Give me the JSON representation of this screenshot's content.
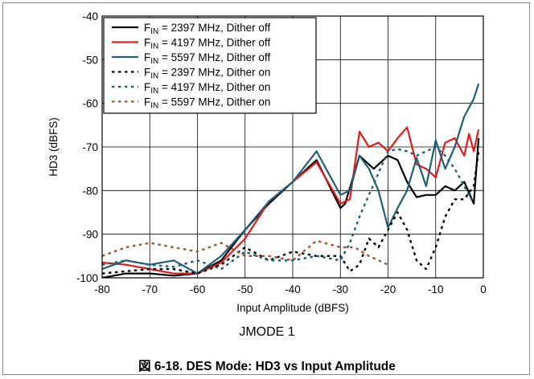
{
  "figure": {
    "subtitle": "JMODE 1",
    "caption": "図 6-18. DES Mode: HD3 vs Input Amplitude"
  },
  "chart_data": {
    "type": "line",
    "title": "",
    "xlabel": "Input Amplitude (dBFS)",
    "ylabel": "HD3 (dBFS)",
    "xlim": [
      -80,
      0
    ],
    "ylim": [
      -100,
      -40
    ],
    "x_ticks": [
      -80,
      -70,
      -60,
      -50,
      -40,
      -30,
      -20,
      -10,
      0
    ],
    "y_ticks": [
      -100,
      -90,
      -80,
      -70,
      -60,
      -50,
      -40
    ],
    "x_tick_labels": [
      "-80",
      "-70",
      "-60",
      "-50",
      "-40",
      "-30",
      "-20",
      "-10",
      "0"
    ],
    "y_tick_labels": [
      "-100",
      "-90",
      "-80",
      "-70",
      "-60",
      "-50",
      "-40"
    ],
    "grid": true,
    "legend_position": "top-left",
    "series": [
      {
        "name": "FIN = 2397 MHz, Dither off",
        "legend_parts": [
          "F",
          "IN",
          " = 2397 MHz, Dither off"
        ],
        "color": "#000000",
        "dash": "solid",
        "x": [
          -80,
          -75,
          -70,
          -65,
          -60,
          -55,
          -50,
          -45,
          -40,
          -35,
          -30,
          -29,
          -26,
          -23,
          -20,
          -18,
          -16,
          -14,
          -12,
          -10,
          -8,
          -6,
          -4,
          -2,
          -1
        ],
        "y": [
          -100,
          -99,
          -99,
          -99.5,
          -99,
          -96,
          -89,
          -83,
          -78,
          -73,
          -84,
          -83,
          -72,
          -75,
          -72,
          -73,
          -78,
          -81.5,
          -81,
          -81,
          -79,
          -80,
          -78,
          -83,
          -68
        ]
      },
      {
        "name": "FIN = 4197 MHz, Dither off",
        "legend_parts": [
          "F",
          "IN",
          " = 4197 MHz, Dither off"
        ],
        "color": "#e31a1c",
        "dash": "solid",
        "x": [
          -80,
          -75,
          -70,
          -65,
          -60,
          -55,
          -50,
          -45,
          -40,
          -35,
          -30,
          -28,
          -26,
          -24,
          -22,
          -20,
          -18,
          -16,
          -14,
          -12,
          -10,
          -8,
          -6,
          -4,
          -3,
          -2,
          -1
        ],
        "y": [
          -96.5,
          -97,
          -98,
          -99,
          -99,
          -96.5,
          -91,
          -82.5,
          -78,
          -73.5,
          -83,
          -82,
          -66.5,
          -70,
          -69,
          -71,
          -68,
          -65.5,
          -74,
          -75,
          -77,
          -69,
          -68,
          -72,
          -67,
          -71,
          -66
        ]
      },
      {
        "name": "FIN = 5597 MHz, Dither off",
        "legend_parts": [
          "F",
          "IN",
          " = 5597 MHz, Dither off"
        ],
        "color": "#1f5f73",
        "dash": "solid",
        "x": [
          -80,
          -75,
          -70,
          -65,
          -60,
          -55,
          -50,
          -45,
          -40,
          -35,
          -30,
          -28,
          -26,
          -24,
          -22,
          -20,
          -18,
          -16,
          -14,
          -12,
          -10,
          -8,
          -6,
          -4,
          -2,
          -1
        ],
        "y": [
          -98,
          -96,
          -97,
          -96,
          -99,
          -95,
          -89,
          -82.5,
          -78,
          -71,
          -81,
          -80,
          -72,
          -75,
          -80,
          -88.5,
          -84,
          -80,
          -72.5,
          -79,
          -68.5,
          -75,
          -70,
          -63,
          -59,
          -55.5
        ]
      },
      {
        "name": "FIN = 2397 MHz, Dither on",
        "legend_parts": [
          "F",
          "IN",
          " = 2397 MHz, Dither on"
        ],
        "color": "#000000",
        "dash": "dotted",
        "x": [
          -80,
          -75,
          -70,
          -65,
          -60,
          -55,
          -50,
          -45,
          -40,
          -35,
          -30,
          -28,
          -26,
          -24,
          -22,
          -20,
          -18,
          -16,
          -14,
          -12,
          -10,
          -8,
          -6,
          -4,
          -2,
          -1
        ],
        "y": [
          -99,
          -98.5,
          -98,
          -98,
          -99,
          -97,
          -93,
          -96,
          -94,
          -95,
          -95,
          -98.5,
          -97,
          -91,
          -93,
          -89,
          -85,
          -89,
          -96,
          -98,
          -93,
          -86,
          -82,
          -82,
          -79,
          -71
        ]
      },
      {
        "name": "FIN = 4197 MHz, Dither on",
        "legend_parts": [
          "F",
          "IN",
          " = 4197 MHz, Dither on"
        ],
        "color": "#1f5f73",
        "dash": "dotted",
        "x": [
          -80,
          -75,
          -70,
          -65,
          -60,
          -55,
          -50,
          -45,
          -40,
          -35,
          -30,
          -28,
          -26,
          -24,
          -22,
          -20,
          -18,
          -16,
          -14,
          -12,
          -10,
          -8,
          -6,
          -4,
          -2
        ],
        "y": [
          -97,
          -96,
          -97,
          -97.5,
          -96,
          -98,
          -94,
          -96,
          -96,
          -95,
          -96,
          -92,
          -86,
          -81,
          -76,
          -71,
          -70.5,
          -71,
          -72,
          -71,
          -70,
          -72,
          -75,
          -79,
          -83
        ]
      },
      {
        "name": "FIN = 5597 MHz, Dither on",
        "legend_parts": [
          "F",
          "IN",
          " = 5597 MHz, Dither on"
        ],
        "color": "#a0522d",
        "dash": "dotted",
        "x": [
          -80,
          -75,
          -70,
          -65,
          -60,
          -55,
          -50,
          -45,
          -40,
          -35,
          -30,
          -27,
          -24,
          -22,
          -20
        ],
        "y": [
          -95,
          -93,
          -92,
          -93,
          -94,
          -92,
          -95,
          -95,
          -96,
          -91.5,
          -93,
          -93,
          -95,
          -96,
          -97
        ]
      }
    ]
  }
}
